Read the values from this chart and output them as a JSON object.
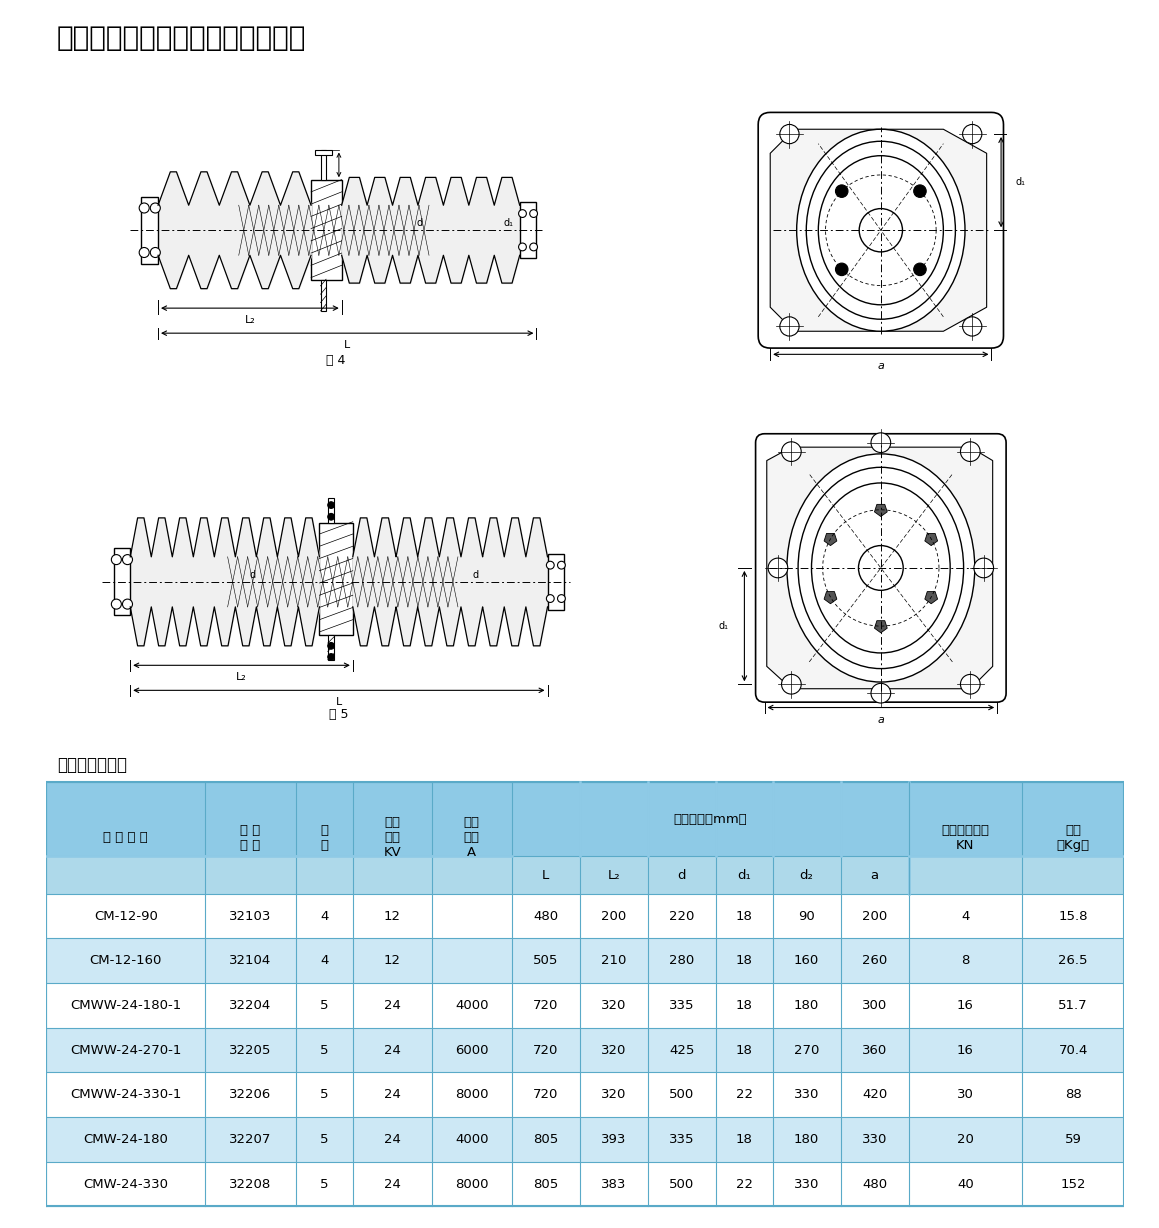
{
  "title": "户内、户外母线穿墙套管（之二）",
  "table_title": "主要尺寸及性能",
  "fig4_label": "图 4",
  "fig5_label": "图 5",
  "data_rows": [
    [
      "CM-12-90",
      "32103",
      "4",
      "12",
      "",
      "480",
      "200",
      "220",
      "18",
      "90",
      "200",
      "4",
      "15.8"
    ],
    [
      "CM-12-160",
      "32104",
      "4",
      "12",
      "",
      "505",
      "210",
      "280",
      "18",
      "160",
      "260",
      "8",
      "26.5"
    ],
    [
      "CMWW-24-180-1",
      "32204",
      "5",
      "24",
      "4000",
      "720",
      "320",
      "335",
      "18",
      "180",
      "300",
      "16",
      "51.7"
    ],
    [
      "CMWW-24-270-1",
      "32205",
      "5",
      "24",
      "6000",
      "720",
      "320",
      "425",
      "18",
      "270",
      "360",
      "16",
      "70.4"
    ],
    [
      "CMWW-24-330-1",
      "32206",
      "5",
      "24",
      "8000",
      "720",
      "320",
      "500",
      "22",
      "330",
      "420",
      "30",
      "88"
    ],
    [
      "CMW-24-180",
      "32207",
      "5",
      "24",
      "4000",
      "805",
      "393",
      "335",
      "18",
      "180",
      "330",
      "20",
      "59"
    ],
    [
      "CMW-24-330",
      "32208",
      "5",
      "24",
      "8000",
      "805",
      "383",
      "500",
      "22",
      "330",
      "480",
      "40",
      "152"
    ]
  ],
  "header_bg": "#8ecae6",
  "subheader_bg": "#aed9ea",
  "row_bg_odd": "#ffffff",
  "row_bg_even": "#cde8f5",
  "border_color": "#5aaac8",
  "text_color": "#000000",
  "bg_color": "#ffffff"
}
